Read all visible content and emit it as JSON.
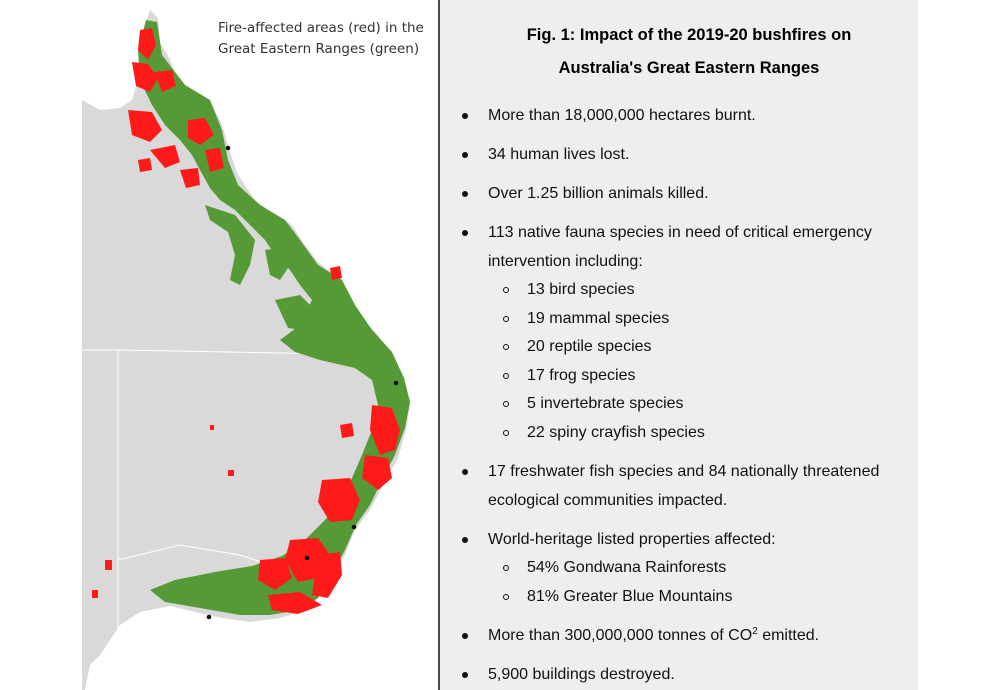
{
  "map": {
    "caption_line1": "Fire-affected areas (red) in the",
    "caption_line2": "Great Eastern Ranges (green)",
    "colors": {
      "land": "#d9d9da",
      "range": "#559a36",
      "fire": "#ff1a1a",
      "border": "#ffffff",
      "city": "#111111"
    }
  },
  "figure": {
    "title_line1": "Fig. 1: Impact of the 2019-20 bushfires on",
    "title_line2": "Australia's Great Eastern Ranges"
  },
  "bullets": {
    "hectares": "More than 18,000,000 hectares burnt.",
    "lives": "34 human lives lost.",
    "animals": "Over 1.25 billion animals killed.",
    "fauna_line1": "113 native fauna species in need of critical emergency",
    "fauna_line2": "intervention including:",
    "fauna_sub": [
      "13 bird species",
      "19 mammal species",
      "20 reptile species",
      "17 frog species",
      "5 invertebrate species",
      "22 spiny crayfish species"
    ],
    "fish_line1": "17 freshwater fish species and 84 nationally threatened",
    "fish_line2": "ecological communities impacted.",
    "heritage": "World-heritage listed properties affected:",
    "heritage_sub": [
      "54% Gondwana Rainforests",
      "81% Greater Blue Mountains"
    ],
    "co2_prefix": "More than 300,000,000 tonnes of CO",
    "co2_sup": "2",
    "co2_suffix": " emitted.",
    "buildings": "5,900 buildings destroyed."
  }
}
